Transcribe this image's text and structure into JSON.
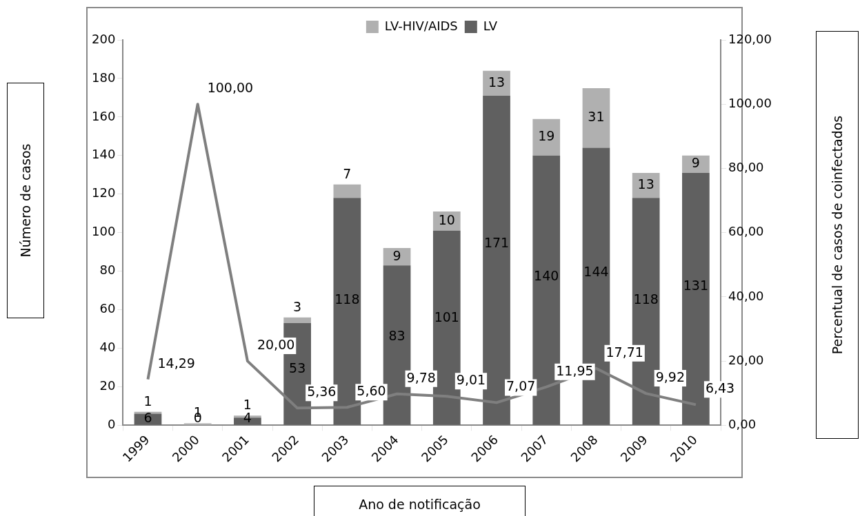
{
  "chart_data": {
    "type": "bar",
    "xlabel": "Ano de notificação",
    "ylabel": "Número de casos",
    "y2label": "Percentual de casos de coinfectados",
    "categories": [
      "1999",
      "2000",
      "2001",
      "2002",
      "2003",
      "2004",
      "2005",
      "2006",
      "2007",
      "2008",
      "2009",
      "2010"
    ],
    "stacked": true,
    "legend": "top",
    "data_labels": true,
    "grid": false,
    "ylim": [
      0,
      200
    ],
    "yticks": [
      0,
      20,
      40,
      60,
      80,
      100,
      120,
      140,
      160,
      180,
      200
    ],
    "y2lim": [
      0,
      120
    ],
    "y2ticks": [
      {
        "value": 0,
        "label": "0,00"
      },
      {
        "value": 20,
        "label": "20,00"
      },
      {
        "value": 40,
        "label": "40,00"
      },
      {
        "value": 60,
        "label": "60,00"
      },
      {
        "value": 80,
        "label": "80,00"
      },
      {
        "value": 100,
        "label": "100,00"
      },
      {
        "value": 120,
        "label": "120,00"
      }
    ],
    "series": [
      {
        "name": "LV",
        "color": "#606060",
        "values": [
          6,
          0,
          4,
          53,
          118,
          83,
          101,
          171,
          140,
          144,
          118,
          131
        ]
      },
      {
        "name": "LV-HIV/AIDS",
        "color": "#b0b0b0",
        "values": [
          1,
          1,
          1,
          3,
          7,
          9,
          10,
          13,
          19,
          31,
          13,
          9
        ]
      },
      {
        "type": "line",
        "axis": "y2",
        "color": "#7f7f7f",
        "marker": "none",
        "values": [
          14.29,
          100.0,
          20.0,
          5.36,
          5.6,
          9.78,
          9.01,
          7.07,
          11.95,
          17.71,
          9.92,
          6.43
        ],
        "value_labels": [
          "14,29",
          "100,00",
          "20,00",
          "5,36",
          "5,60",
          "9,78",
          "9,01",
          "7,07",
          "11,95",
          "17,71",
          "9,92",
          "6,43"
        ]
      }
    ]
  }
}
